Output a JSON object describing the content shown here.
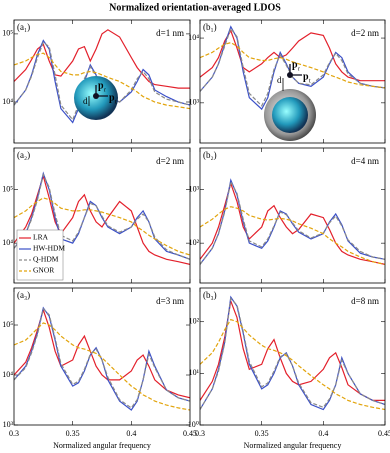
{
  "title": "Normalized orientation-averaged LDOS",
  "chart_data": [
    {
      "type": "line",
      "panel_label": "(a₁)",
      "annotation": "d=1 nm",
      "log_y": true,
      "inset_labels": [
        "d",
        "p",
        "r",
        "p",
        "t"
      ],
      "x": [
        0.3,
        0.31,
        0.315,
        0.32,
        0.325,
        0.33,
        0.335,
        0.34,
        0.35,
        0.355,
        0.36,
        0.365,
        0.37,
        0.375,
        0.38,
        0.39,
        0.4,
        0.405,
        0.41,
        0.415,
        0.42,
        0.43,
        0.44,
        0.45
      ],
      "xlim": [
        0.3,
        0.45
      ],
      "xticks": [
        0.3,
        0.35,
        0.4,
        0.45
      ],
      "ylim": [
        2500,
        160000
      ],
      "yticks": [
        {
          "value": 10000,
          "label": "10⁴"
        },
        {
          "value": 100000,
          "label": "10⁵"
        }
      ],
      "series": [
        {
          "color": "#e3202b",
          "dash": false,
          "values": [
            20000,
            30000,
            42000,
            60000,
            70000,
            40000,
            25000,
            24000,
            40000,
            60000,
            65000,
            40000,
            60000,
            100000,
            115000,
            90000,
            45000,
            32000,
            25000,
            20000,
            18000,
            17000,
            16000,
            16000
          ]
        },
        {
          "color": "#3b50c8",
          "dash": false,
          "values": [
            9000,
            15000,
            25000,
            50000,
            80000,
            60000,
            20000,
            8000,
            5000,
            8000,
            20000,
            35000,
            25000,
            15000,
            12000,
            10000,
            14000,
            20000,
            30000,
            25000,
            15000,
            12000,
            10000,
            9000
          ]
        },
        {
          "color": "#8a8a8a",
          "dash": true,
          "values": [
            9000,
            15000,
            24000,
            45000,
            75000,
            65000,
            25000,
            9000,
            5500,
            9000,
            22000,
            33000,
            24000,
            15000,
            12000,
            10000,
            15000,
            22000,
            28000,
            22000,
            14000,
            11000,
            10000,
            9000
          ]
        },
        {
          "color": "#e2a40c",
          "dash": true,
          "values": [
            35000,
            40000,
            45000,
            50000,
            52000,
            45000,
            35000,
            28000,
            25000,
            25000,
            27000,
            28000,
            27000,
            25000,
            23000,
            20000,
            16000,
            14000,
            12000,
            11000,
            10000,
            9000,
            8500,
            8000
          ]
        }
      ]
    },
    {
      "type": "line",
      "panel_label": "(b₁)",
      "annotation": "d=2 nm",
      "log_y": true,
      "inset_labels": [
        "d",
        "p",
        "r",
        "p",
        "t"
      ],
      "x": [
        0.3,
        0.31,
        0.315,
        0.32,
        0.325,
        0.33,
        0.335,
        0.34,
        0.35,
        0.355,
        0.36,
        0.365,
        0.37,
        0.375,
        0.38,
        0.39,
        0.4,
        0.405,
        0.41,
        0.415,
        0.42,
        0.43,
        0.44,
        0.45
      ],
      "xlim": [
        0.3,
        0.45
      ],
      "xticks": [
        0.3,
        0.35,
        0.4,
        0.45
      ],
      "ylim": [
        240,
        19000
      ],
      "yticks": [
        {
          "value": 1000,
          "label": "10³"
        },
        {
          "value": 10000,
          "label": "10⁴"
        }
      ],
      "series": [
        {
          "color": "#e3202b",
          "dash": false,
          "values": [
            2500,
            3500,
            5000,
            9000,
            13000,
            7000,
            3500,
            3000,
            4000,
            5000,
            6000,
            5000,
            5500,
            7000,
            9000,
            12000,
            11000,
            7000,
            4000,
            3000,
            2500,
            2200,
            2200,
            2200
          ]
        },
        {
          "color": "#3b50c8",
          "dash": false,
          "values": [
            1500,
            2500,
            4000,
            8000,
            15000,
            10000,
            3000,
            1200,
            800,
            1200,
            3000,
            6000,
            4000,
            2500,
            2000,
            1800,
            2500,
            4000,
            6000,
            5000,
            3000,
            2000,
            1800,
            1700
          ]
        },
        {
          "color": "#8a8a8a",
          "dash": true,
          "values": [
            1500,
            2500,
            4000,
            7500,
            14000,
            10500,
            3500,
            1400,
            900,
            1400,
            3300,
            5500,
            3800,
            2500,
            2000,
            1900,
            2700,
            4200,
            5800,
            4500,
            2800,
            2000,
            1800,
            1700
          ]
        },
        {
          "color": "#e2a40c",
          "dash": true,
          "values": [
            5000,
            6000,
            7000,
            8000,
            8500,
            7500,
            6000,
            5000,
            4500,
            4500,
            4800,
            5000,
            4700,
            4300,
            4000,
            3500,
            3000,
            2700,
            2500,
            2300,
            2100,
            1900,
            1800,
            1700
          ]
        }
      ]
    },
    {
      "type": "line",
      "panel_label": "(a₂)",
      "annotation": "d=2 nm",
      "log_y": true,
      "legend": "lower-left",
      "x": [
        0.3,
        0.31,
        0.315,
        0.32,
        0.325,
        0.33,
        0.335,
        0.34,
        0.35,
        0.355,
        0.36,
        0.365,
        0.37,
        0.375,
        0.38,
        0.39,
        0.4,
        0.405,
        0.41,
        0.415,
        0.42,
        0.43,
        0.44,
        0.45
      ],
      "xlim": [
        0.3,
        0.45
      ],
      "xticks": [
        0.3,
        0.35,
        0.4,
        0.45
      ],
      "ylim": [
        1800,
        600000
      ],
      "yticks": [
        {
          "value": 10000,
          "label": "10⁴"
        },
        {
          "value": 100000,
          "label": "10⁵"
        }
      ],
      "series": [
        {
          "name": "LRA",
          "color": "#e3202b",
          "dash": false,
          "values": [
            10000,
            20000,
            35000,
            80000,
            180000,
            70000,
            25000,
            15000,
            30000,
            60000,
            80000,
            40000,
            25000,
            20000,
            30000,
            60000,
            40000,
            20000,
            10000,
            7000,
            6000,
            5000,
            4500,
            4000
          ]
        },
        {
          "name": "HW-HDM",
          "color": "#3b50c8",
          "dash": false,
          "values": [
            8000,
            15000,
            30000,
            70000,
            200000,
            100000,
            30000,
            12000,
            10000,
            15000,
            30000,
            60000,
            50000,
            30000,
            20000,
            15000,
            20000,
            30000,
            40000,
            25000,
            12000,
            7000,
            6000,
            5000
          ]
        },
        {
          "name": "Q-HDM",
          "color": "#8a8a8a",
          "dash": true,
          "values": [
            8000,
            15000,
            28000,
            65000,
            190000,
            110000,
            35000,
            14000,
            11000,
            16000,
            30000,
            55000,
            50000,
            32000,
            21000,
            16000,
            20000,
            28000,
            35000,
            25000,
            13000,
            7500,
            6000,
            5000
          ]
        },
        {
          "name": "GNOR",
          "color": "#e2a40c",
          "dash": true,
          "values": [
            30000,
            40000,
            50000,
            60000,
            70000,
            65000,
            55000,
            45000,
            40000,
            40000,
            42000,
            42000,
            40000,
            38000,
            35000,
            30000,
            25000,
            20000,
            17000,
            14000,
            12000,
            9000,
            7000,
            6000
          ]
        }
      ]
    },
    {
      "type": "line",
      "panel_label": "(b₂)",
      "annotation": "d=4 nm",
      "log_y": true,
      "x": [
        0.3,
        0.31,
        0.315,
        0.32,
        0.325,
        0.33,
        0.335,
        0.34,
        0.35,
        0.355,
        0.36,
        0.365,
        0.37,
        0.375,
        0.38,
        0.39,
        0.4,
        0.405,
        0.41,
        0.415,
        0.42,
        0.43,
        0.44,
        0.45
      ],
      "xlim": [
        0.3,
        0.45
      ],
      "xticks": [
        0.3,
        0.35,
        0.4,
        0.45
      ],
      "ylim": [
        18,
        6000
      ],
      "yticks": [
        {
          "value": 100,
          "label": "10²"
        },
        {
          "value": 1000,
          "label": "10³"
        }
      ],
      "series": [
        {
          "color": "#e3202b",
          "dash": false,
          "values": [
            50,
            100,
            200,
            500,
            1300,
            600,
            200,
            120,
            200,
            400,
            500,
            300,
            200,
            150,
            180,
            350,
            300,
            180,
            100,
            70,
            60,
            50,
            45,
            40
          ]
        },
        {
          "color": "#3b50c8",
          "dash": false,
          "values": [
            40,
            80,
            150,
            400,
            1500,
            800,
            250,
            100,
            80,
            110,
            200,
            400,
            350,
            230,
            160,
            120,
            150,
            250,
            350,
            220,
            110,
            65,
            55,
            50
          ]
        },
        {
          "color": "#8a8a8a",
          "dash": true,
          "values": [
            40,
            80,
            150,
            380,
            1400,
            850,
            280,
            110,
            85,
            120,
            210,
            380,
            340,
            240,
            170,
            125,
            155,
            240,
            320,
            210,
            115,
            70,
            55,
            50
          ]
        },
        {
          "color": "#e2a40c",
          "dash": true,
          "values": [
            200,
            280,
            350,
            430,
            480,
            450,
            400,
            330,
            280,
            270,
            280,
            290,
            280,
            260,
            230,
            190,
            150,
            120,
            100,
            85,
            70,
            55,
            45,
            40
          ]
        }
      ]
    },
    {
      "type": "line",
      "panel_label": "(a₃)",
      "annotation": "d=3 nm",
      "log_y": true,
      "xlabel": "Normalized angular frequency",
      "x": [
        0.3,
        0.31,
        0.315,
        0.32,
        0.325,
        0.33,
        0.335,
        0.34,
        0.35,
        0.355,
        0.36,
        0.365,
        0.37,
        0.375,
        0.38,
        0.39,
        0.4,
        0.405,
        0.41,
        0.415,
        0.42,
        0.43,
        0.44,
        0.45
      ],
      "xlim": [
        0.3,
        0.45
      ],
      "xticks": [
        0.3,
        0.35,
        0.4,
        0.45
      ],
      "ylim": [
        1000,
        550000
      ],
      "yticks": [
        {
          "value": 1000,
          "label": "10³"
        },
        {
          "value": 10000,
          "label": "10⁴"
        },
        {
          "value": 100000,
          "label": "10⁵"
        }
      ],
      "series": [
        {
          "color": "#e3202b",
          "dash": false,
          "values": [
            10000,
            18000,
            35000,
            80000,
            200000,
            90000,
            30000,
            15000,
            20000,
            40000,
            60000,
            30000,
            15000,
            10000,
            8000,
            8000,
            12000,
            20000,
            25000,
            15000,
            8000,
            5000,
            4000,
            3500
          ]
        },
        {
          "color": "#3b50c8",
          "dash": false,
          "values": [
            8000,
            15000,
            30000,
            70000,
            220000,
            150000,
            50000,
            15000,
            6000,
            7000,
            12000,
            25000,
            35000,
            20000,
            8000,
            3000,
            2000,
            3000,
            8000,
            30000,
            15000,
            5000,
            3500,
            3000
          ]
        },
        {
          "color": "#8a8a8a",
          "dash": true,
          "values": [
            8000,
            14000,
            28000,
            65000,
            210000,
            160000,
            55000,
            17000,
            6500,
            7500,
            13000,
            26000,
            33000,
            20000,
            9000,
            3200,
            2200,
            3200,
            8000,
            26000,
            14000,
            5000,
            3500,
            3000
          ]
        },
        {
          "color": "#e2a40c",
          "dash": true,
          "values": [
            40000,
            50000,
            65000,
            85000,
            110000,
            100000,
            80000,
            60000,
            40000,
            35000,
            33000,
            30000,
            27000,
            22000,
            17000,
            10000,
            6000,
            5000,
            4000,
            3500,
            3000,
            2500,
            2200,
            2000
          ]
        }
      ]
    },
    {
      "type": "line",
      "panel_label": "(b₃)",
      "annotation": "d=8 nm",
      "log_y": true,
      "xlabel": "Normalized angular frequency",
      "x": [
        0.3,
        0.31,
        0.315,
        0.32,
        0.325,
        0.33,
        0.335,
        0.34,
        0.35,
        0.355,
        0.36,
        0.365,
        0.37,
        0.375,
        0.38,
        0.39,
        0.4,
        0.405,
        0.41,
        0.415,
        0.42,
        0.43,
        0.44,
        0.45
      ],
      "xlim": [
        0.3,
        0.45
      ],
      "xticks": [
        0.3,
        0.35,
        0.4,
        0.45
      ],
      "ylim": [
        1,
        450
      ],
      "yticks": [
        {
          "value": 1,
          "label": "10⁰"
        },
        {
          "value": 10,
          "label": "10¹"
        },
        {
          "value": 100,
          "label": "10²"
        }
      ],
      "series": [
        {
          "color": "#e3202b",
          "dash": false,
          "values": [
            3,
            7,
            15,
            50,
            250,
            120,
            30,
            12,
            15,
            30,
            45,
            20,
            10,
            7,
            6,
            7,
            12,
            20,
            25,
            13,
            6,
            4,
            3,
            3
          ]
        },
        {
          "color": "#3b50c8",
          "dash": false,
          "values": [
            2,
            5,
            12,
            40,
            300,
            200,
            60,
            15,
            5,
            6,
            10,
            20,
            25,
            14,
            6,
            2.5,
            2,
            3,
            6,
            20,
            10,
            4,
            3,
            2.5
          ]
        },
        {
          "color": "#8a8a8a",
          "dash": true,
          "values": [
            2,
            5,
            11,
            38,
            280,
            210,
            65,
            17,
            5.5,
            6.5,
            11,
            21,
            24,
            14,
            6.5,
            2.7,
            2.2,
            3.2,
            6,
            18,
            10,
            4,
            3,
            2.5
          ]
        },
        {
          "color": "#e2a40c",
          "dash": true,
          "values": [
            15,
            25,
            40,
            70,
            110,
            100,
            75,
            55,
            35,
            30,
            28,
            25,
            22,
            18,
            14,
            9,
            6,
            5,
            4,
            3.5,
            3,
            2.5,
            2.2,
            2
          ]
        }
      ]
    }
  ]
}
